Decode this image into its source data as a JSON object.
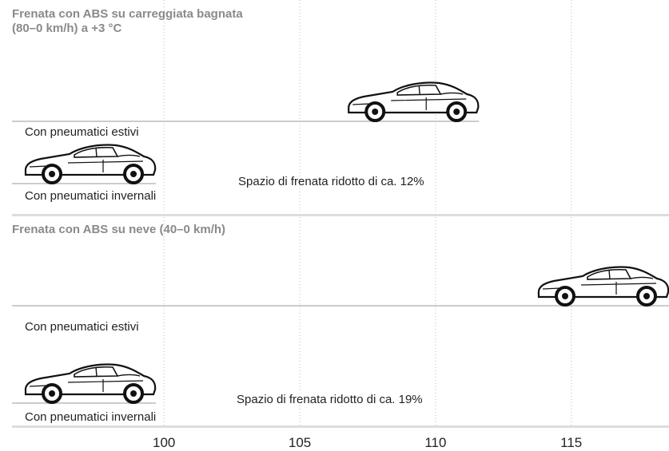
{
  "chart_data": {
    "type": "bar",
    "orientation": "horizontal",
    "grid": true,
    "xlim": [
      94.4,
      118.6
    ],
    "xticks": [
      100,
      105,
      110,
      115
    ],
    "panels": [
      {
        "title": [
          "Frenata con ABS su carreggiata bagnata",
          "(80–0 km/h) a +3 °C"
        ],
        "series": [
          {
            "name": "Con pneumatici estivi",
            "color": "#cccccc",
            "values": [
              111.6
            ]
          },
          {
            "name": "Con pneumatici invernali",
            "color": "#cccccc",
            "values": [
              99.7
            ]
          }
        ],
        "annotation": "Spazio di frenata ridotto di ca. 12%"
      },
      {
        "title": [
          "Frenata con ABS su neve (40–0 km/h)"
        ],
        "series": [
          {
            "name": "Con pneumatici estivi",
            "color": "#cccccc",
            "values": [
              118.6
            ]
          },
          {
            "name": "Con pneumatici invernali",
            "color": "#cccccc",
            "values": [
              99.7
            ]
          }
        ],
        "annotation": "Spazio di frenata ridotto di ca. 19%"
      }
    ]
  }
}
